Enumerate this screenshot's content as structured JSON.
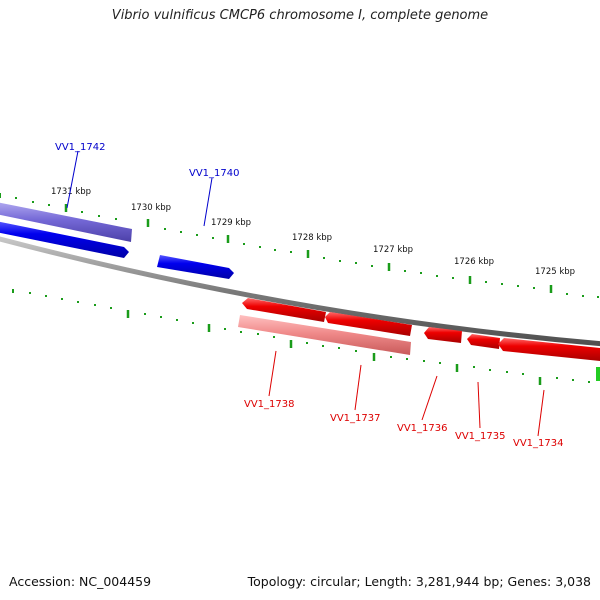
{
  "title": "Vibrio vulnificus CMCP6 chromosome I, complete genome",
  "footer": {
    "accession": "Accession: NC_004459",
    "summary": "Topology: circular; Length: 3,281,944 bp; Genes: 3,038"
  },
  "colors": {
    "backbone": "#808080",
    "forward_cds": "#0000ee",
    "forward_gene": "#7468d6",
    "reverse_cds": "#ee0000",
    "reverse_gene": "#f08a8a",
    "tick": "#1a9c1a",
    "forward_label": "#0000cc",
    "reverse_label": "#dd0000",
    "scale_label": "#111111"
  },
  "scale_labels": [
    "1731 kbp",
    "1730 kbp",
    "1729 kbp",
    "1728 kbp",
    "1727 kbp",
    "1726 kbp",
    "1725 kbp"
  ],
  "forward_labels": [
    "VV1_1742",
    "VV1_1740"
  ],
  "reverse_labels": [
    "VV1_1738",
    "VV1_1737",
    "VV1_1736",
    "VV1_1735",
    "VV1_1734"
  ]
}
